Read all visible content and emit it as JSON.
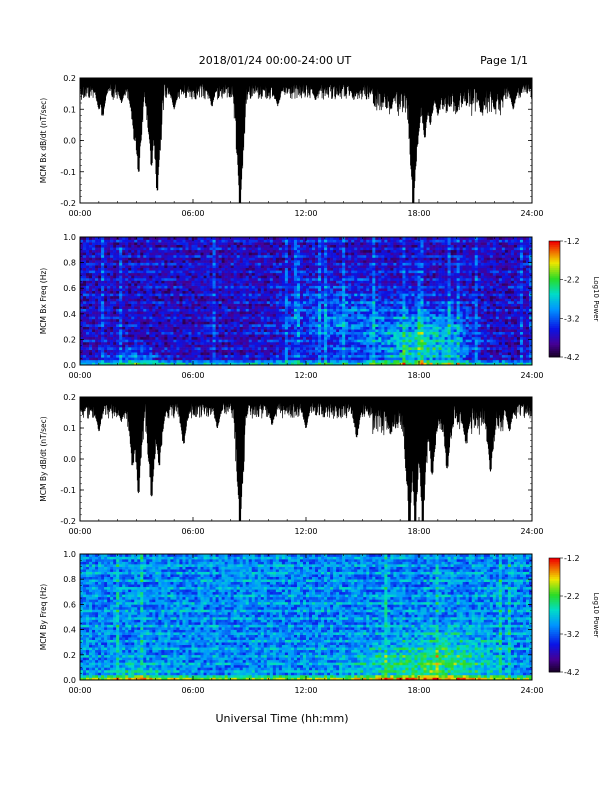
{
  "header": {
    "title": "2018/01/24  00:00-24:00 UT",
    "page": "Page 1/1"
  },
  "footer": {
    "xlabel": "Universal Time (hh:mm)"
  },
  "chart_data": [
    {
      "type": "line",
      "ylabel": "MCM Bx dB/dt (nT/sec)",
      "xlim": [
        0,
        24
      ],
      "ylim": [
        -0.2,
        0.2
      ],
      "xticks": [
        "00:00",
        "06:00",
        "12:00",
        "18:00",
        "24:00"
      ],
      "yticks": [
        "0.2",
        "0.1",
        "0.0",
        "-0.1",
        "-0.2"
      ],
      "clip_level": 0.2,
      "spikes": [
        {
          "x": 1.0,
          "y": 0.1
        },
        {
          "x": 1.2,
          "y": 0.08
        },
        {
          "x": 2.2,
          "y": 0.12
        },
        {
          "x": 2.9,
          "y": 0.0
        },
        {
          "x": 3.1,
          "y": -0.1
        },
        {
          "x": 3.8,
          "y": -0.08
        },
        {
          "x": 4.1,
          "y": -0.16
        },
        {
          "x": 5.0,
          "y": 0.1
        },
        {
          "x": 7.0,
          "y": 0.11
        },
        {
          "x": 8.5,
          "y": 0.05
        },
        {
          "x": 8.5,
          "y": -0.21
        },
        {
          "x": 10.5,
          "y": 0.11
        },
        {
          "x": 12.5,
          "y": 0.13
        },
        {
          "x": 14.5,
          "y": 0.14
        },
        {
          "x": 16.5,
          "y": 0.1
        },
        {
          "x": 17.7,
          "y": -0.21
        },
        {
          "x": 17.9,
          "y": -0.02
        },
        {
          "x": 18.3,
          "y": 0.01
        },
        {
          "x": 18.6,
          "y": 0.05
        },
        {
          "x": 19.0,
          "y": 0.08
        },
        {
          "x": 20.0,
          "y": 0.09
        },
        {
          "x": 21.3,
          "y": 0.09
        },
        {
          "x": 22.0,
          "y": 0.1
        },
        {
          "x": 23.0,
          "y": 0.1
        }
      ]
    },
    {
      "type": "heatmap",
      "ylabel": "MCM Bx Freq (Hz)",
      "xlim": [
        0,
        24
      ],
      "ylim": [
        0,
        1
      ],
      "xticks": [
        "00:00",
        "06:00",
        "12:00",
        "18:00",
        "24:00"
      ],
      "yticks": [
        "1.0",
        "0.8",
        "0.6",
        "0.4",
        "0.2",
        "0.0"
      ],
      "colorbar_label": "Log10 Power",
      "colorbar_ticks": [
        "-1.2",
        "-2.2",
        "-3.2",
        "-4.2"
      ],
      "color_range": [
        -4.2,
        -1.2
      ],
      "background_level": -3.7,
      "hotspots": [
        {
          "t": 17.5,
          "f": 0.15,
          "amp": 0.9,
          "tw": 2.0,
          "fw": 0.25
        },
        {
          "t": 19.5,
          "f": 0.2,
          "amp": 0.6,
          "tw": 1.5,
          "fw": 0.3
        },
        {
          "t": 3.0,
          "f": 0.05,
          "amp": 0.6,
          "tw": 1.2,
          "fw": 0.08
        },
        {
          "t": 14.0,
          "f": 0.35,
          "amp": 0.5,
          "tw": 3.0,
          "fw": 0.3
        }
      ]
    },
    {
      "type": "line",
      "ylabel": "MCM By dB/dt (nT/sec)",
      "xlim": [
        0,
        24
      ],
      "ylim": [
        -0.2,
        0.2
      ],
      "xticks": [
        "00:00",
        "06:00",
        "12:00",
        "18:00",
        "24:00"
      ],
      "yticks": [
        "0.2",
        "0.1",
        "0.0",
        "-0.1",
        "-0.2"
      ],
      "clip_level": 0.2,
      "spikes": [
        {
          "x": 1.0,
          "y": 0.09
        },
        {
          "x": 2.2,
          "y": 0.12
        },
        {
          "x": 2.8,
          "y": -0.02
        },
        {
          "x": 3.1,
          "y": -0.11
        },
        {
          "x": 3.8,
          "y": -0.12
        },
        {
          "x": 4.2,
          "y": -0.02
        },
        {
          "x": 5.5,
          "y": 0.05
        },
        {
          "x": 7.3,
          "y": 0.1
        },
        {
          "x": 8.5,
          "y": -0.21
        },
        {
          "x": 10.2,
          "y": 0.11
        },
        {
          "x": 12.0,
          "y": 0.1
        },
        {
          "x": 14.7,
          "y": 0.07
        },
        {
          "x": 16.5,
          "y": 0.08
        },
        {
          "x": 17.5,
          "y": -0.21
        },
        {
          "x": 17.8,
          "y": -0.21
        },
        {
          "x": 18.2,
          "y": -0.21
        },
        {
          "x": 18.7,
          "y": -0.05
        },
        {
          "x": 19.5,
          "y": -0.03
        },
        {
          "x": 20.5,
          "y": 0.05
        },
        {
          "x": 21.8,
          "y": -0.04
        },
        {
          "x": 22.8,
          "y": 0.09
        }
      ]
    },
    {
      "type": "heatmap",
      "ylabel": "MCM By Freq (Hz)",
      "xlim": [
        0,
        24
      ],
      "ylim": [
        0,
        1
      ],
      "xticks": [
        "00:00",
        "06:00",
        "12:00",
        "18:00",
        "24:00"
      ],
      "yticks": [
        "1.0",
        "0.8",
        "0.6",
        "0.4",
        "0.2",
        "0.0"
      ],
      "colorbar_label": "Log10 Power",
      "colorbar_ticks": [
        "-1.2",
        "-2.2",
        "-3.2",
        "-4.2"
      ],
      "color_range": [
        -4.2,
        -1.2
      ],
      "background_level": -3.05,
      "hotspots": [
        {
          "t": 17.5,
          "f": 0.1,
          "amp": 0.55,
          "tw": 3.0,
          "fw": 0.2
        },
        {
          "t": 20.0,
          "f": 0.15,
          "amp": 0.4,
          "tw": 2.0,
          "fw": 0.25
        },
        {
          "t": 3.0,
          "f": 0.05,
          "amp": 0.4,
          "tw": 1.5,
          "fw": 0.1
        }
      ]
    }
  ]
}
